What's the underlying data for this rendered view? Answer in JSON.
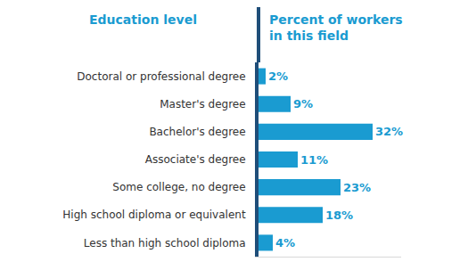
{
  "chart_data": {
    "type": "bar",
    "orientation": "horizontal",
    "ylabel": "Education level",
    "xlabel": "Percent of workers\nin this field",
    "categories": [
      "Doctoral or professional degree",
      "Master's degree",
      "Bachelor's degree",
      "Associate's degree",
      "Some college, no degree",
      "High school diploma or equivalent",
      "Less than high school diploma"
    ],
    "values": [
      2,
      9,
      32,
      11,
      23,
      18,
      4
    ],
    "value_labels": [
      "2%",
      "9%",
      "32%",
      "11%",
      "23%",
      "18%",
      "4%"
    ],
    "color": "#1a9bd1",
    "xlim": [
      0,
      40
    ],
    "xticks": [],
    "grid": false,
    "data_labels": true,
    "tick_labels": "y"
  }
}
